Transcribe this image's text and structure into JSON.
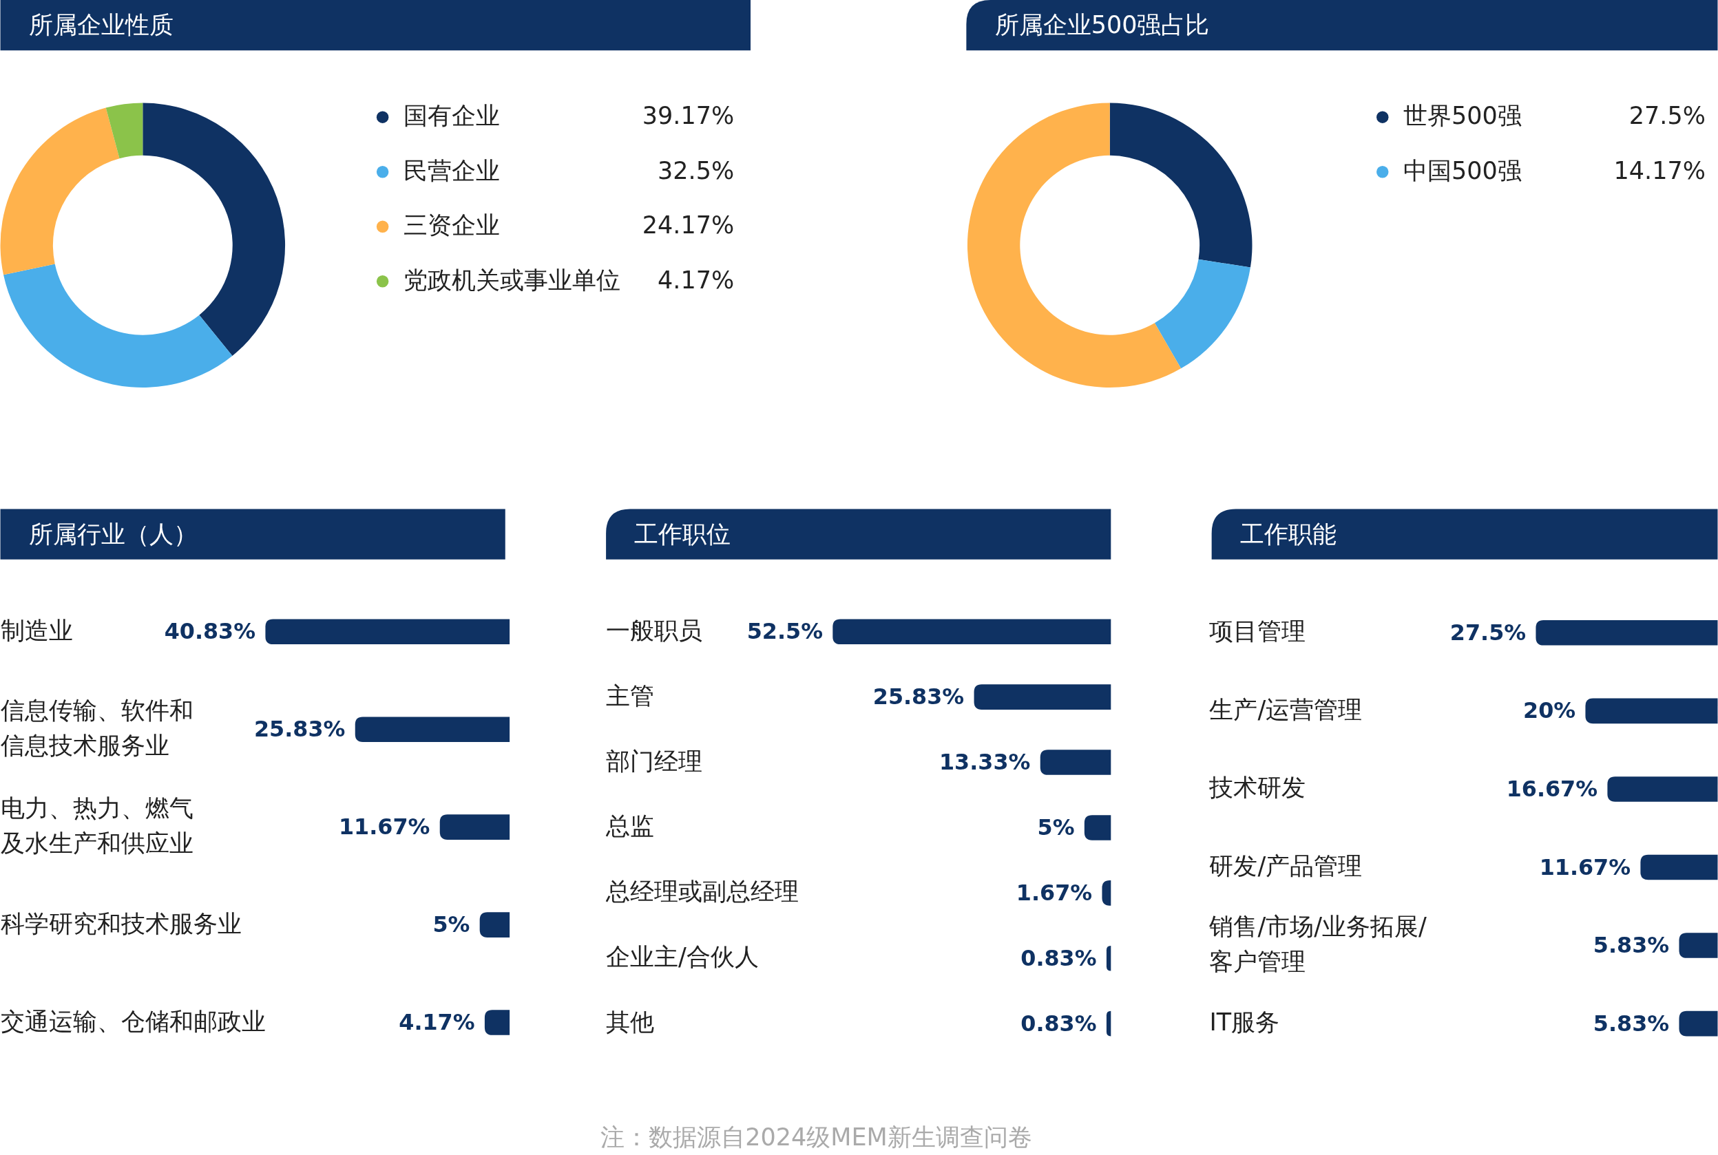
{
  "chart_data": [
    {
      "type": "donut",
      "title": "所属企业性质",
      "categories": [
        "国有企业",
        "民营企业",
        "三资企业",
        "党政机关或事业单位"
      ],
      "values": [
        39.17,
        32.5,
        24.17,
        4.17
      ],
      "value_labels": [
        "39.17%",
        "32.5%",
        "24.17%",
        "4.17%"
      ],
      "colors": [
        "#0f3263",
        "#4aaeea",
        "#ffb24c",
        "#8bc34a"
      ],
      "legend": "right"
    },
    {
      "type": "donut",
      "title": "所属企业500强占比",
      "categories": [
        "世界500强",
        "中国500强",
        null
      ],
      "values": [
        27.5,
        14.17,
        58.33
      ],
      "value_labels": [
        "27.5%",
        "14.17%",
        null
      ],
      "colors": [
        "#0f3263",
        "#4aaeea",
        "#ffb24c"
      ],
      "legend": "right"
    },
    {
      "type": "bar",
      "orientation": "horizontal",
      "title": "所属行业（人）",
      "categories": [
        "制造业",
        "信息传输、软件和信息技术服务业",
        "电力、热力、燃气及水生产和供应业",
        "科学研究和技术服务业",
        "交通运输、仓储和邮政业"
      ],
      "values": [
        40.83,
        25.83,
        11.67,
        5,
        4.17
      ],
      "value_labels": [
        "40.83%",
        "25.83%",
        "11.67%",
        "5%",
        "4.17%"
      ],
      "color": "#0f3263"
    },
    {
      "type": "bar",
      "orientation": "horizontal",
      "title": "工作职位",
      "categories": [
        "一般职员",
        "主管",
        "部门经理",
        "总监",
        "总经理或副总经理",
        "企业主/合伙人",
        "其他"
      ],
      "values": [
        52.5,
        25.83,
        13.33,
        5,
        1.67,
        0.83,
        0.83
      ],
      "value_labels": [
        "52.5%",
        "25.83%",
        "13.33%",
        "5%",
        "1.67%",
        "0.83%",
        "0.83%"
      ],
      "color": "#0f3263",
      "annotations": [
        "注：数据源自2024级MEM新生调查问卷"
      ]
    },
    {
      "type": "bar",
      "orientation": "horizontal",
      "title": "工作职能",
      "categories": [
        "项目管理",
        "生产/运营管理",
        "技术研发",
        "研发/产品管理",
        "销售/市场/业务拓展/客户管理",
        "IT服务"
      ],
      "values": [
        27.5,
        20,
        16.67,
        11.67,
        5.83,
        5.83
      ],
      "value_labels": [
        "27.5%",
        "20%",
        "16.67%",
        "11.67%",
        "5.83%",
        "5.83%"
      ],
      "color": "#0f3263"
    }
  ]
}
